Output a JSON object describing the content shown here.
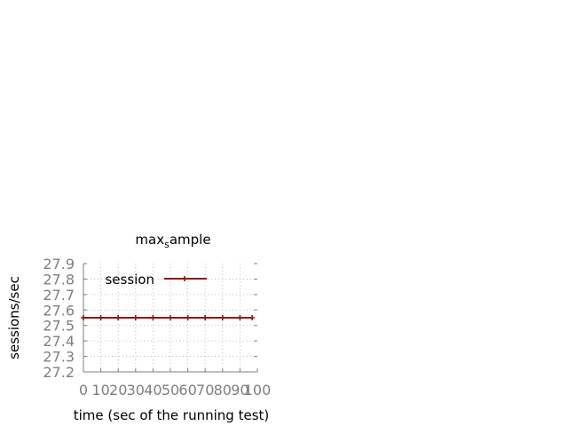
{
  "chart_data": {
    "type": "line",
    "title_main": "max",
    "title_sub": "s",
    "title_rest": "ample",
    "xlabel": "time (sec of the running test)",
    "ylabel": "sessions/sec",
    "xlim": [
      0,
      100
    ],
    "ylim": [
      27.2,
      27.9
    ],
    "xticks": [
      "0",
      "10",
      "20",
      "30",
      "40",
      "50",
      "60",
      "70",
      "80",
      "90",
      "100"
    ],
    "yticks": [
      "27.2",
      "27.3",
      "27.4",
      "27.5",
      "27.6",
      "27.7",
      "27.8",
      "27.9"
    ],
    "grid": true,
    "legend_position": "top-left",
    "series": [
      {
        "name": "session",
        "color": "#8b1a0e",
        "x": [
          0,
          10,
          20,
          30,
          40,
          50,
          60,
          70,
          80,
          90,
          97
        ],
        "y": [
          27.55,
          27.55,
          27.55,
          27.55,
          27.55,
          27.55,
          27.55,
          27.55,
          27.55,
          27.55,
          27.55
        ]
      }
    ]
  }
}
